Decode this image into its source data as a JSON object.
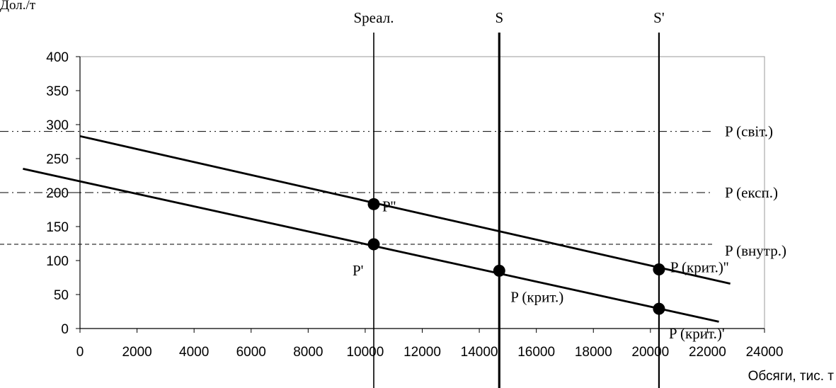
{
  "chart_data": {
    "type": "line",
    "ylabel": "Дол./т",
    "xlabel": "Обсяги, тис. т",
    "xlim": [
      0,
      24000
    ],
    "ylim": [
      0,
      400
    ],
    "x_ticks": [
      "0",
      "2000",
      "4000",
      "6000",
      "8000",
      "10000",
      "12000",
      "14000",
      "16000",
      "18000",
      "20000",
      "22000",
      "24000"
    ],
    "y_ticks": [
      "0",
      "50",
      "100",
      "150",
      "200",
      "250",
      "300",
      "350",
      "400"
    ],
    "grid": false,
    "series": [
      {
        "points": [
          [
            0,
            283
          ],
          [
            22800,
            66
          ]
        ]
      },
      {
        "points": [
          [
            -2000,
            235
          ],
          [
            22400,
            10
          ]
        ]
      }
    ],
    "horizontal_lines": [
      {
        "label": "P (світ.)",
        "y": 290,
        "style": "dash-dot-dot"
      },
      {
        "label": "P (експ.)",
        "y": 200,
        "style": "dash-dot"
      },
      {
        "label": "P (внутр.)",
        "y": 124,
        "style": "dashed"
      }
    ],
    "vertical_lines": [
      {
        "label": "Sреал.",
        "x": 10300,
        "width": 1.6
      },
      {
        "label": "S",
        "x": 14700,
        "width": 3.2
      },
      {
        "label": "S'",
        "x": 20300,
        "width": 2.2
      }
    ],
    "points": [
      {
        "label": "P''",
        "x": 10300,
        "y": 183
      },
      {
        "label": "P'",
        "x": 10300,
        "y": 124
      },
      {
        "label": "P (крит.)",
        "x": 14700,
        "y": 85
      },
      {
        "label": "P (крит.)''",
        "x": 20300,
        "y": 87
      },
      {
        "label": "P (крит.)'",
        "x": 20300,
        "y": 29
      }
    ]
  }
}
